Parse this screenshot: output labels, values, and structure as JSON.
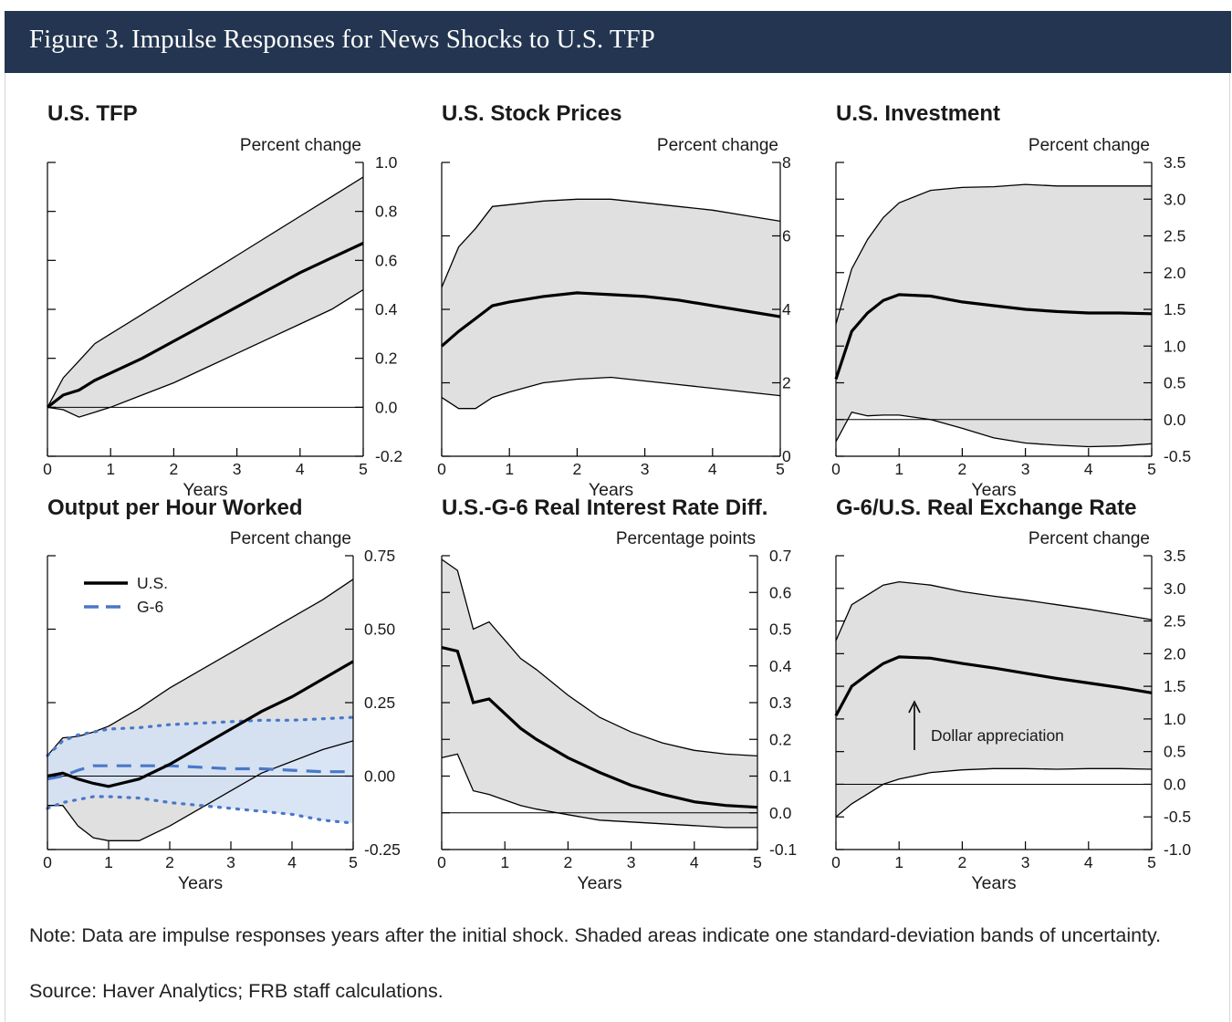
{
  "figure": {
    "title": "Figure 3. Impulse Responses for News Shocks to U.S. TFP",
    "note": "Note: Data are impulse responses years after the initial shock. Shaded areas indicate one standard-deviation bands of uncertainty.",
    "source": "Source: Haver Analytics; FRB staff calculations."
  },
  "colors": {
    "header_bg": "#233550",
    "band_fill": "#e0e0e0",
    "line": "#000000",
    "g6_line": "#4a78c8",
    "g6_band": "#d2e0f3"
  },
  "chart_data": [
    {
      "type": "line",
      "title": "U.S. TFP",
      "ylabel": "Percent change",
      "xlabel": "Years",
      "xlim": [
        0,
        5
      ],
      "ylim": [
        -0.2,
        1.0
      ],
      "xticks": [
        "0",
        "1",
        "2",
        "3",
        "4",
        "5"
      ],
      "yticks": [
        "1.0",
        "0.8",
        "0.6",
        "0.4",
        "0.2",
        "0.0",
        "-0.2"
      ],
      "ytick_values": [
        1.0,
        0.8,
        0.6,
        0.4,
        0.2,
        0.0,
        -0.2
      ],
      "zero_line": 0,
      "x": [
        0,
        0.25,
        0.5,
        0.75,
        1,
        1.5,
        2,
        2.5,
        3,
        3.5,
        4,
        4.5,
        5
      ],
      "series": [
        {
          "role": "upper",
          "values": [
            0,
            0.12,
            0.19,
            0.26,
            0.3,
            0.38,
            0.46,
            0.54,
            0.62,
            0.7,
            0.78,
            0.86,
            0.94
          ]
        },
        {
          "role": "main",
          "values": [
            0,
            0.05,
            0.07,
            0.11,
            0.14,
            0.2,
            0.27,
            0.34,
            0.41,
            0.48,
            0.55,
            0.61,
            0.67
          ]
        },
        {
          "role": "lower",
          "values": [
            0,
            -0.01,
            -0.04,
            -0.02,
            0,
            0.05,
            0.1,
            0.16,
            0.22,
            0.28,
            0.34,
            0.4,
            0.48
          ]
        }
      ]
    },
    {
      "type": "line",
      "title": "U.S. Stock Prices",
      "ylabel": "Percent change",
      "xlabel": "Years",
      "xlim": [
        0,
        5
      ],
      "ylim": [
        0,
        8
      ],
      "xticks": [
        "0",
        "1",
        "2",
        "3",
        "4",
        "5"
      ],
      "yticks": [
        "8",
        "6",
        "4",
        "2",
        "0"
      ],
      "ytick_values": [
        8,
        6,
        4,
        2,
        0
      ],
      "x": [
        0,
        0.25,
        0.5,
        0.75,
        1,
        1.5,
        2,
        2.5,
        3,
        3.5,
        4,
        4.5,
        5
      ],
      "series": [
        {
          "role": "upper",
          "values": [
            4.6,
            5.7,
            6.2,
            6.8,
            6.85,
            6.95,
            7.0,
            7.0,
            6.9,
            6.8,
            6.7,
            6.55,
            6.4
          ]
        },
        {
          "role": "main",
          "values": [
            3.0,
            3.4,
            3.75,
            4.1,
            4.2,
            4.35,
            4.45,
            4.4,
            4.35,
            4.25,
            4.1,
            3.95,
            3.8
          ]
        },
        {
          "role": "lower",
          "values": [
            1.6,
            1.3,
            1.3,
            1.6,
            1.75,
            2.0,
            2.1,
            2.15,
            2.05,
            1.95,
            1.85,
            1.75,
            1.65
          ]
        }
      ]
    },
    {
      "type": "line",
      "title": "U.S. Investment",
      "ylabel": "Percent change",
      "xlabel": "Years",
      "xlim": [
        0,
        5
      ],
      "ylim": [
        -0.5,
        3.5
      ],
      "xticks": [
        "0",
        "1",
        "2",
        "3",
        "4",
        "5"
      ],
      "yticks": [
        "3.5",
        "3.0",
        "2.5",
        "2.0",
        "1.5",
        "1.0",
        "0.5",
        "0.0",
        "-0.5"
      ],
      "ytick_values": [
        3.5,
        3.0,
        2.5,
        2.0,
        1.5,
        1.0,
        0.5,
        0.0,
        -0.5
      ],
      "zero_line": 0,
      "x": [
        0,
        0.25,
        0.5,
        0.75,
        1,
        1.5,
        2,
        2.5,
        3,
        3.5,
        4,
        4.5,
        5
      ],
      "series": [
        {
          "role": "upper",
          "values": [
            1.3,
            2.05,
            2.45,
            2.75,
            2.95,
            3.12,
            3.16,
            3.17,
            3.2,
            3.18,
            3.18,
            3.18,
            3.18
          ]
        },
        {
          "role": "main",
          "values": [
            0.55,
            1.2,
            1.45,
            1.62,
            1.7,
            1.68,
            1.6,
            1.55,
            1.5,
            1.47,
            1.45,
            1.45,
            1.44
          ]
        },
        {
          "role": "lower",
          "values": [
            -0.3,
            0.1,
            0.05,
            0.06,
            0.06,
            0.0,
            -0.12,
            -0.25,
            -0.32,
            -0.35,
            -0.37,
            -0.36,
            -0.33
          ]
        }
      ]
    },
    {
      "type": "line",
      "title": "Output per Hour Worked",
      "ylabel": "Percent change",
      "xlabel": "Years",
      "xlim": [
        0,
        5
      ],
      "ylim": [
        -0.25,
        0.75
      ],
      "xticks": [
        "0",
        "1",
        "2",
        "3",
        "4",
        "5"
      ],
      "yticks": [
        "0.75",
        "0.50",
        "0.25",
        "0.00",
        "-0.25"
      ],
      "ytick_values": [
        0.75,
        0.5,
        0.25,
        0.0,
        -0.25
      ],
      "zero_line": 0,
      "legend": [
        {
          "label": "U.S.",
          "style": "solid"
        },
        {
          "label": "G-6",
          "style": "dashed"
        }
      ],
      "x": [
        0,
        0.25,
        0.5,
        0.75,
        1,
        1.5,
        2,
        2.5,
        3,
        3.5,
        4,
        4.5,
        5
      ],
      "series": [
        {
          "role": "upper",
          "values": [
            0.07,
            0.13,
            0.135,
            0.15,
            0.17,
            0.23,
            0.3,
            0.36,
            0.42,
            0.48,
            0.54,
            0.6,
            0.67
          ]
        },
        {
          "role": "main",
          "values": [
            0.0,
            0.01,
            -0.01,
            -0.025,
            -0.035,
            -0.01,
            0.04,
            0.1,
            0.16,
            0.22,
            0.27,
            0.33,
            0.39
          ]
        },
        {
          "role": "lower",
          "values": [
            -0.1,
            -0.1,
            -0.17,
            -0.21,
            -0.22,
            -0.22,
            -0.17,
            -0.11,
            -0.05,
            0.01,
            0.05,
            0.09,
            0.12
          ]
        },
        {
          "role": "g6_upper",
          "values": [
            0.07,
            0.12,
            0.14,
            0.15,
            0.16,
            0.165,
            0.175,
            0.18,
            0.185,
            0.19,
            0.19,
            0.195,
            0.2
          ]
        },
        {
          "role": "g6_main",
          "values": [
            -0.01,
            0.0,
            0.02,
            0.035,
            0.035,
            0.035,
            0.035,
            0.03,
            0.025,
            0.025,
            0.02,
            0.015,
            0.015
          ]
        },
        {
          "role": "g6_lower",
          "values": [
            -0.11,
            -0.09,
            -0.08,
            -0.07,
            -0.07,
            -0.075,
            -0.09,
            -0.1,
            -0.11,
            -0.12,
            -0.13,
            -0.15,
            -0.16
          ]
        }
      ]
    },
    {
      "type": "line",
      "title": "U.S.-G-6 Real Interest Rate Diff.",
      "ylabel": "Percentage points",
      "xlabel": "Years",
      "xlim": [
        0,
        5
      ],
      "ylim": [
        -0.1,
        0.7
      ],
      "xticks": [
        "0",
        "1",
        "2",
        "3",
        "4",
        "5"
      ],
      "yticks": [
        "0.7",
        "0.6",
        "0.5",
        "0.4",
        "0.3",
        "0.2",
        "0.1",
        "0.0",
        "-0.1"
      ],
      "ytick_values": [
        0.7,
        0.6,
        0.5,
        0.4,
        0.3,
        0.2,
        0.1,
        0.0,
        -0.1
      ],
      "zero_line": 0,
      "x": [
        0,
        0.25,
        0.5,
        0.75,
        1,
        1.25,
        1.5,
        2,
        2.5,
        3,
        3.5,
        4,
        4.5,
        5
      ],
      "series": [
        {
          "role": "upper",
          "values": [
            0.69,
            0.66,
            0.5,
            0.52,
            0.47,
            0.42,
            0.39,
            0.32,
            0.26,
            0.22,
            0.19,
            0.17,
            0.16,
            0.155
          ]
        },
        {
          "role": "main",
          "values": [
            0.45,
            0.44,
            0.3,
            0.31,
            0.27,
            0.23,
            0.2,
            0.15,
            0.11,
            0.075,
            0.05,
            0.03,
            0.02,
            0.015
          ]
        },
        {
          "role": "lower",
          "values": [
            0.15,
            0.16,
            0.06,
            0.05,
            0.035,
            0.02,
            0.01,
            -0.005,
            -0.02,
            -0.025,
            -0.03,
            -0.035,
            -0.04,
            -0.04
          ]
        }
      ]
    },
    {
      "type": "line",
      "title": "G-6/U.S. Real Exchange Rate",
      "ylabel": "Percent change",
      "xlabel": "Years",
      "xlim": [
        0,
        5
      ],
      "ylim": [
        -1.0,
        3.5
      ],
      "xticks": [
        "0",
        "1",
        "2",
        "3",
        "4",
        "5"
      ],
      "yticks": [
        "3.5",
        "3.0",
        "2.5",
        "2.0",
        "1.5",
        "1.0",
        "0.5",
        "0.0",
        "-0.5",
        "-1.0"
      ],
      "ytick_values": [
        3.5,
        3.0,
        2.5,
        2.0,
        1.5,
        1.0,
        0.5,
        0.0,
        -0.5,
        -1.0
      ],
      "zero_line": 0,
      "annotation": "Dollar appreciation",
      "x": [
        0,
        0.25,
        0.5,
        0.75,
        1,
        1.5,
        2,
        2.5,
        3,
        3.5,
        4,
        4.5,
        5
      ],
      "series": [
        {
          "role": "upper",
          "values": [
            2.2,
            2.75,
            2.9,
            3.05,
            3.1,
            3.05,
            2.95,
            2.88,
            2.82,
            2.75,
            2.68,
            2.6,
            2.52
          ]
        },
        {
          "role": "main",
          "values": [
            1.05,
            1.5,
            1.68,
            1.85,
            1.95,
            1.93,
            1.85,
            1.78,
            1.7,
            1.62,
            1.55,
            1.48,
            1.4
          ]
        },
        {
          "role": "lower",
          "values": [
            -0.5,
            -0.3,
            -0.15,
            0.0,
            0.08,
            0.18,
            0.22,
            0.24,
            0.24,
            0.23,
            0.24,
            0.24,
            0.23
          ]
        }
      ]
    }
  ]
}
